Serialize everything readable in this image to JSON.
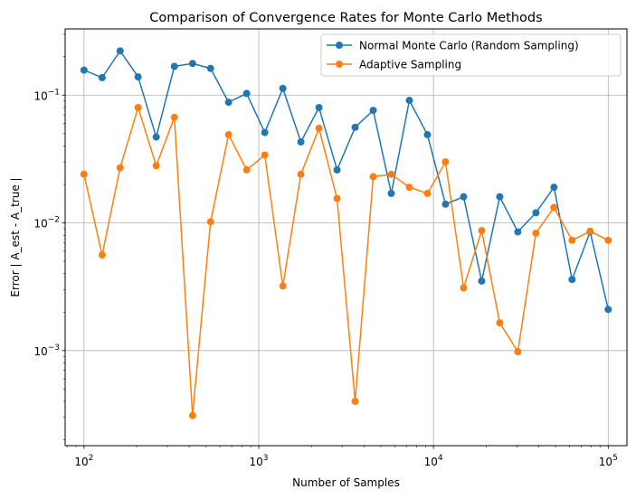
{
  "chart_data": {
    "type": "line",
    "title": "Comparison of Convergence Rates for Monte Carlo Methods",
    "xlabel": "Number of Samples",
    "ylabel": "Error | A_est - A_true |",
    "xscale": "log",
    "yscale": "log",
    "xlim": [
      78,
      128000
    ],
    "ylim": [
      0.00018,
      0.33
    ],
    "grid": true,
    "legend_position": "upper right",
    "x_ticks": [
      {
        "value": 100,
        "base": "10",
        "exp": "2"
      },
      {
        "value": 1000,
        "base": "10",
        "exp": "3"
      },
      {
        "value": 10000,
        "base": "10",
        "exp": "4"
      },
      {
        "value": 100000,
        "base": "10",
        "exp": "5"
      }
    ],
    "y_ticks": [
      {
        "value": 0.001,
        "base": "10",
        "exp": "−3"
      },
      {
        "value": 0.01,
        "base": "10",
        "exp": "−2"
      },
      {
        "value": 0.1,
        "base": "10",
        "exp": "−1"
      }
    ],
    "x": [
      100,
      127,
      161,
      204,
      259,
      329,
      418,
      530,
      672,
      853,
      1083,
      1374,
      1743,
      2212,
      2807,
      3562,
      4520,
      5736,
      7278,
      9236,
      11721,
      14873,
      18874,
      23950,
      30392,
      38566,
      48939,
      62102,
      78805,
      100000
    ],
    "series": [
      {
        "name": "Normal Monte Carlo (Random Sampling)",
        "color": "#1f77b4",
        "values": [
          0.157,
          0.137,
          0.222,
          0.139,
          0.047,
          0.168,
          0.177,
          0.162,
          0.088,
          0.103,
          0.051,
          0.113,
          0.043,
          0.08,
          0.026,
          0.056,
          0.076,
          0.017,
          0.091,
          0.049,
          0.014,
          0.016,
          0.0035,
          0.016,
          0.0085,
          0.012,
          0.019,
          0.0036,
          0.0085,
          0.0021
        ]
      },
      {
        "name": "Adaptive Sampling",
        "color": "#ff7f0e",
        "values": [
          0.024,
          0.0056,
          0.027,
          0.08,
          0.028,
          0.067,
          0.00031,
          0.0102,
          0.049,
          0.026,
          0.034,
          0.0032,
          0.024,
          0.055,
          0.0155,
          0.0004,
          0.023,
          0.024,
          0.019,
          0.017,
          0.03,
          0.0031,
          0.0087,
          0.00165,
          0.00098,
          0.0083,
          0.0132,
          0.0073,
          0.0086,
          0.0073
        ]
      }
    ]
  }
}
